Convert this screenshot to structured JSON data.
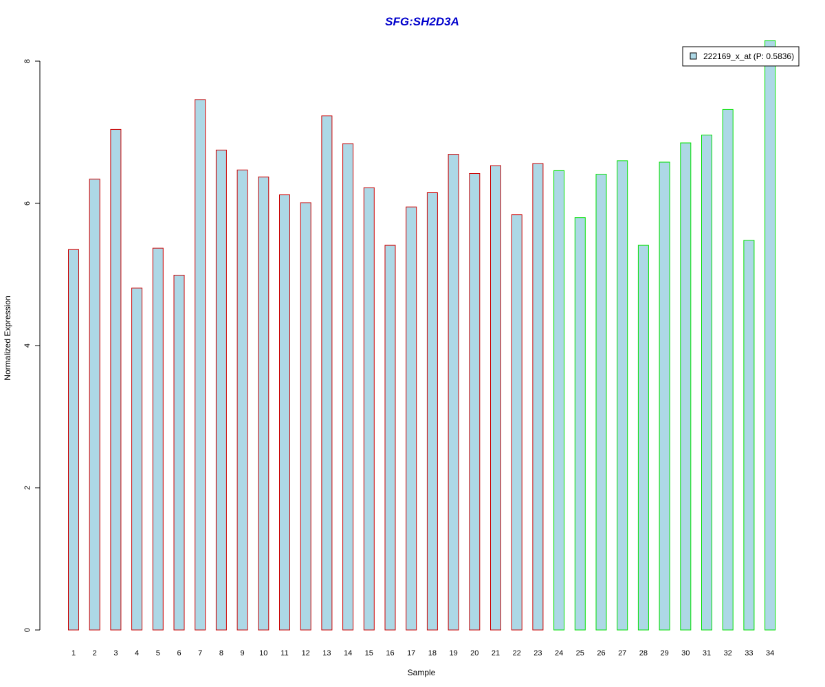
{
  "chart_data": {
    "type": "bar",
    "title": "SFG:SH2D3A",
    "xlabel": "Sample",
    "ylabel": "Normalized Expression",
    "ylim": [
      0,
      8
    ],
    "yticks": [
      0,
      2,
      4,
      6,
      8
    ],
    "categories": [
      "1",
      "2",
      "3",
      "4",
      "5",
      "6",
      "7",
      "8",
      "9",
      "10",
      "11",
      "12",
      "13",
      "14",
      "15",
      "16",
      "17",
      "18",
      "19",
      "20",
      "21",
      "22",
      "23",
      "24",
      "25",
      "26",
      "27",
      "28",
      "29",
      "30",
      "31",
      "32",
      "33",
      "34"
    ],
    "series": [
      {
        "name": "222169_x_at (P: 0.5836)",
        "values": [
          5.35,
          6.34,
          7.04,
          4.81,
          5.37,
          4.99,
          7.46,
          6.75,
          6.47,
          6.37,
          6.12,
          6.01,
          7.23,
          6.84,
          6.22,
          5.41,
          5.95,
          6.15,
          6.69,
          6.42,
          6.53,
          5.84,
          6.56,
          6.46,
          5.8,
          6.41,
          6.6,
          5.41,
          6.58,
          6.85,
          6.96,
          7.32,
          5.48,
          8.29
        ]
      }
    ],
    "group_borders": [
      "#cc0000",
      "#cc0000",
      "#cc0000",
      "#cc0000",
      "#cc0000",
      "#cc0000",
      "#cc0000",
      "#cc0000",
      "#cc0000",
      "#cc0000",
      "#cc0000",
      "#cc0000",
      "#cc0000",
      "#cc0000",
      "#cc0000",
      "#cc0000",
      "#cc0000",
      "#cc0000",
      "#cc0000",
      "#cc0000",
      "#cc0000",
      "#cc0000",
      "#cc0000",
      "#00e000",
      "#00e000",
      "#00e000",
      "#00e000",
      "#00e000",
      "#00e000",
      "#00e000",
      "#00e000",
      "#00e000",
      "#00e000",
      "#00e000"
    ],
    "bar_fill": "#add8e6",
    "title_color": "#0000cc",
    "grid": false,
    "legend_position": "top-right"
  }
}
